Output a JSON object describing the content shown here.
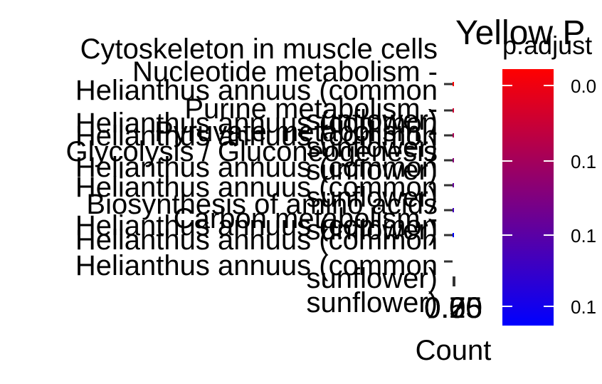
{
  "chart_data": {
    "type": "bar",
    "title": "Yellow P",
    "xlabel": "Count",
    "ylabel": "",
    "categories": [
      "Cytoskeleton in muscle cells - Helianthus annuus (common sunflower)",
      "Nucleotide metabolism - Helianthus annuus (common sunflower)",
      "Purine metabolism - Helianthus annuus (common sunflower)",
      "Pyruvate metabolism - Helianthus annuus (common sunflower)",
      "Glycolysis / Gluconeogenesis - Helianthus annuus (common sunflower)",
      "Biosynthesis of amino acids - Helianthus annuus (common sunflower)",
      "Carbon metabolism - Helianthus annuus (common sunflower)"
    ],
    "category_text_fragments": [
      "Cytoskeleton in muscle cells",
      "Nucleotide metabolism -",
      "Helianthus annuus (common",
      "Purine metabolism -",
      "Helianthus annuus (common",
      "Pyruvate metabolism -",
      "sunflower)",
      "Helianthus annuus (common",
      "Glycolysis / Gluconeogenesis",
      "sunflower)",
      "Helianthus annuus (common",
      "sunflower)",
      "Helianthus annuus (common",
      "Biosynthesis of amino acids",
      "sunflower)",
      "Carbon metabolism -",
      "sunflower)",
      "Helianthus annuus (common",
      "Helianthus annuus (common",
      "Helianthus annuus (common",
      "sunflower)",
      "sunflower)"
    ],
    "x_tick_labels": [
      "0.00",
      "0.25",
      "0.50",
      "0.75"
    ],
    "values": [
      1,
      1,
      1,
      1,
      1,
      1,
      1
    ],
    "legend": {
      "title": "p.adjust",
      "tick_labels": [
        "0.0",
        "0.1",
        "0.1",
        "0.1"
      ],
      "gradient_colors": [
        "#ff0000",
        "#0000ff"
      ],
      "placement": "right"
    },
    "bar_colors": [
      "#ff0000",
      "#cc0033",
      "#aa0055",
      "#880077",
      "#660099",
      "#4400bb",
      "#0000ff"
    ]
  }
}
